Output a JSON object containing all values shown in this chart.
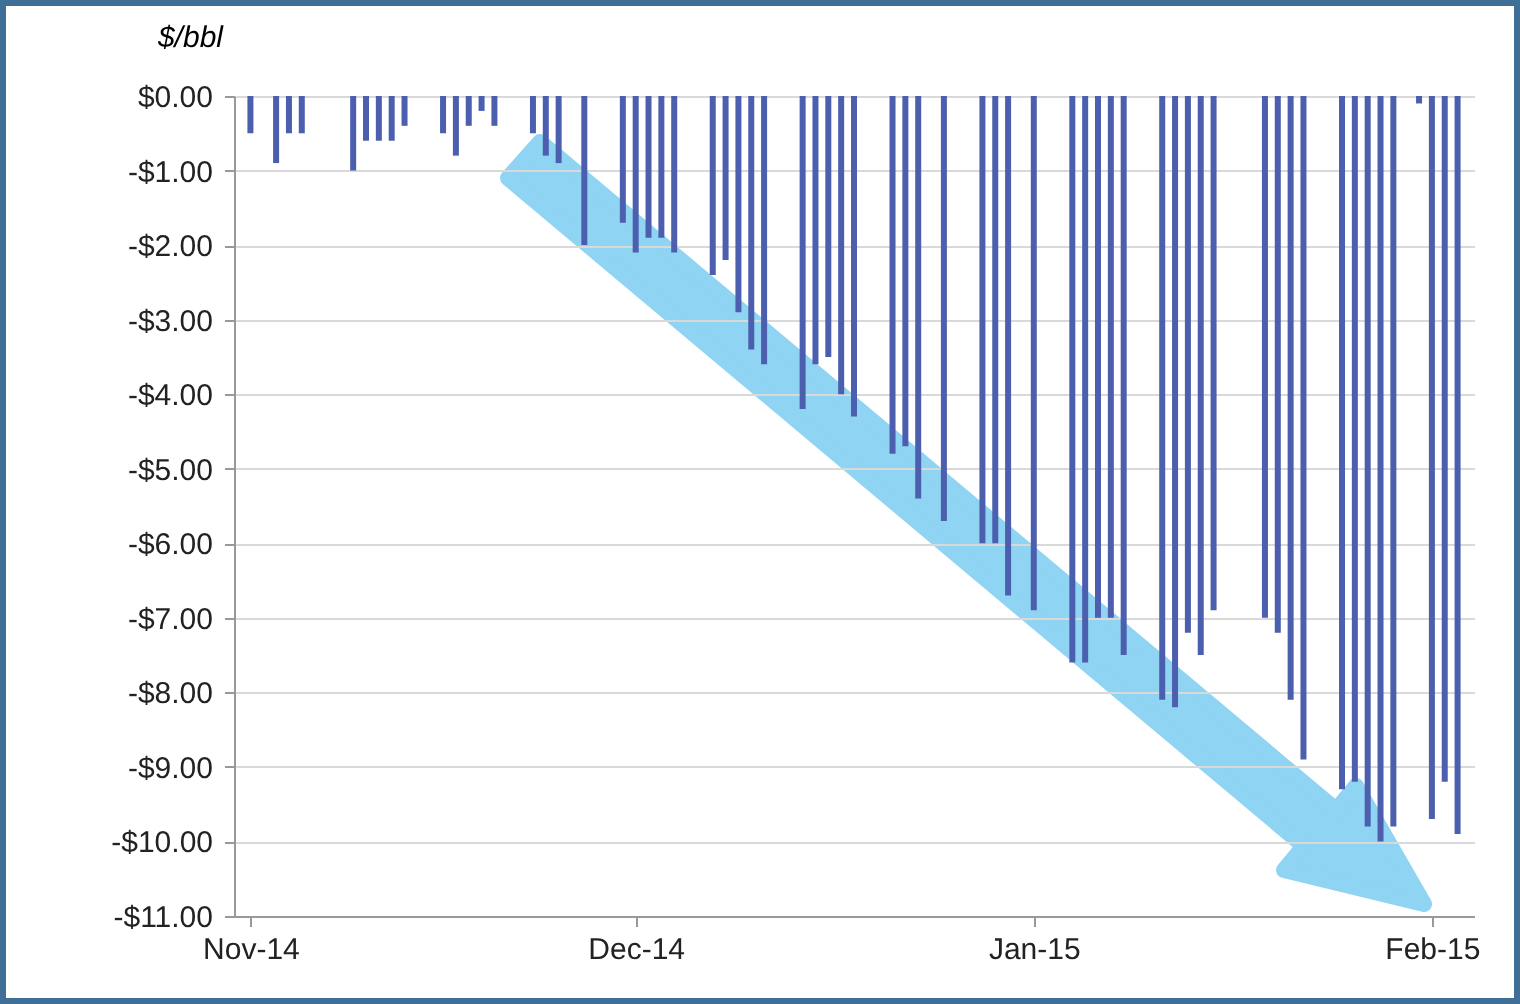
{
  "chart_data": {
    "type": "bar",
    "ylabel": "$/bbl",
    "x": [
      "2014-11-01",
      "2014-11-03",
      "2014-11-04",
      "2014-11-05",
      "2014-11-09",
      "2014-11-10",
      "2014-11-11",
      "2014-11-12",
      "2014-11-13",
      "2014-11-16",
      "2014-11-17",
      "2014-11-18",
      "2014-11-19",
      "2014-11-20",
      "2014-11-23",
      "2014-11-24",
      "2014-11-25",
      "2014-11-27",
      "2014-11-30",
      "2014-12-01",
      "2014-12-02",
      "2014-12-03",
      "2014-12-04",
      "2014-12-07",
      "2014-12-08",
      "2014-12-09",
      "2014-12-10",
      "2014-12-11",
      "2014-12-14",
      "2014-12-15",
      "2014-12-16",
      "2014-12-17",
      "2014-12-18",
      "2014-12-21",
      "2014-12-22",
      "2014-12-23",
      "2014-12-25",
      "2014-12-28",
      "2014-12-29",
      "2014-12-30",
      "2015-01-01",
      "2015-01-04",
      "2015-01-05",
      "2015-01-06",
      "2015-01-07",
      "2015-01-08",
      "2015-01-11",
      "2015-01-12",
      "2015-01-13",
      "2015-01-14",
      "2015-01-15",
      "2015-01-19",
      "2015-01-20",
      "2015-01-21",
      "2015-01-22",
      "2015-01-25",
      "2015-01-26",
      "2015-01-27",
      "2015-01-28",
      "2015-01-29",
      "2015-01-31",
      "2015-02-01",
      "2015-02-02",
      "2015-02-03"
    ],
    "values": [
      -0.5,
      -0.9,
      -0.5,
      -0.5,
      -1.0,
      -0.6,
      -0.6,
      -0.6,
      -0.4,
      -0.5,
      -0.8,
      -0.4,
      -0.2,
      -0.4,
      -0.5,
      -0.8,
      -0.9,
      -2.0,
      -1.7,
      -2.1,
      -1.9,
      -1.9,
      -2.1,
      -2.4,
      -2.2,
      -2.9,
      -3.4,
      -3.6,
      -4.2,
      -3.6,
      -3.5,
      -4.0,
      -4.3,
      -4.8,
      -4.7,
      -5.4,
      -5.7,
      -6.0,
      -6.0,
      -6.7,
      -6.9,
      -7.6,
      -7.6,
      -7.0,
      -7.0,
      -7.5,
      -8.1,
      -8.2,
      -7.2,
      -7.5,
      -6.9,
      -7.0,
      -7.2,
      -8.1,
      -8.9,
      -9.3,
      -9.2,
      -9.8,
      -10.0,
      -9.8,
      -0.1,
      -9.7,
      -9.2,
      -9.9
    ],
    "color": "#4b5fae",
    "xlim": [
      "2014-10-31T12:00",
      "2015-02-03T12:00"
    ],
    "xticks": [
      {
        "value": "2014-11-01",
        "label": "Nov-14"
      },
      {
        "value": "2014-12-01",
        "label": "Dec-14"
      },
      {
        "value": "2015-01-01",
        "label": "Jan-15"
      },
      {
        "value": "2015-02-01",
        "label": "Feb-15"
      }
    ],
    "ylim": [
      -11,
      0
    ],
    "yticks": [
      {
        "value": 0,
        "label": "$0.00"
      },
      {
        "value": -1,
        "label": "-$1.00"
      },
      {
        "value": -2,
        "label": "-$2.00"
      },
      {
        "value": -3,
        "label": "-$3.00"
      },
      {
        "value": -4,
        "label": "-$4.00"
      },
      {
        "value": -5,
        "label": "-$5.00"
      },
      {
        "value": -6,
        "label": "-$6.00"
      },
      {
        "value": -7,
        "label": "-$7.00"
      },
      {
        "value": -8,
        "label": "-$8.00"
      },
      {
        "value": -9,
        "label": "-$9.00"
      },
      {
        "value": -10,
        "label": "-$10.00"
      },
      {
        "value": -11,
        "label": "-$11.00"
      }
    ],
    "grid": "y"
  }
}
